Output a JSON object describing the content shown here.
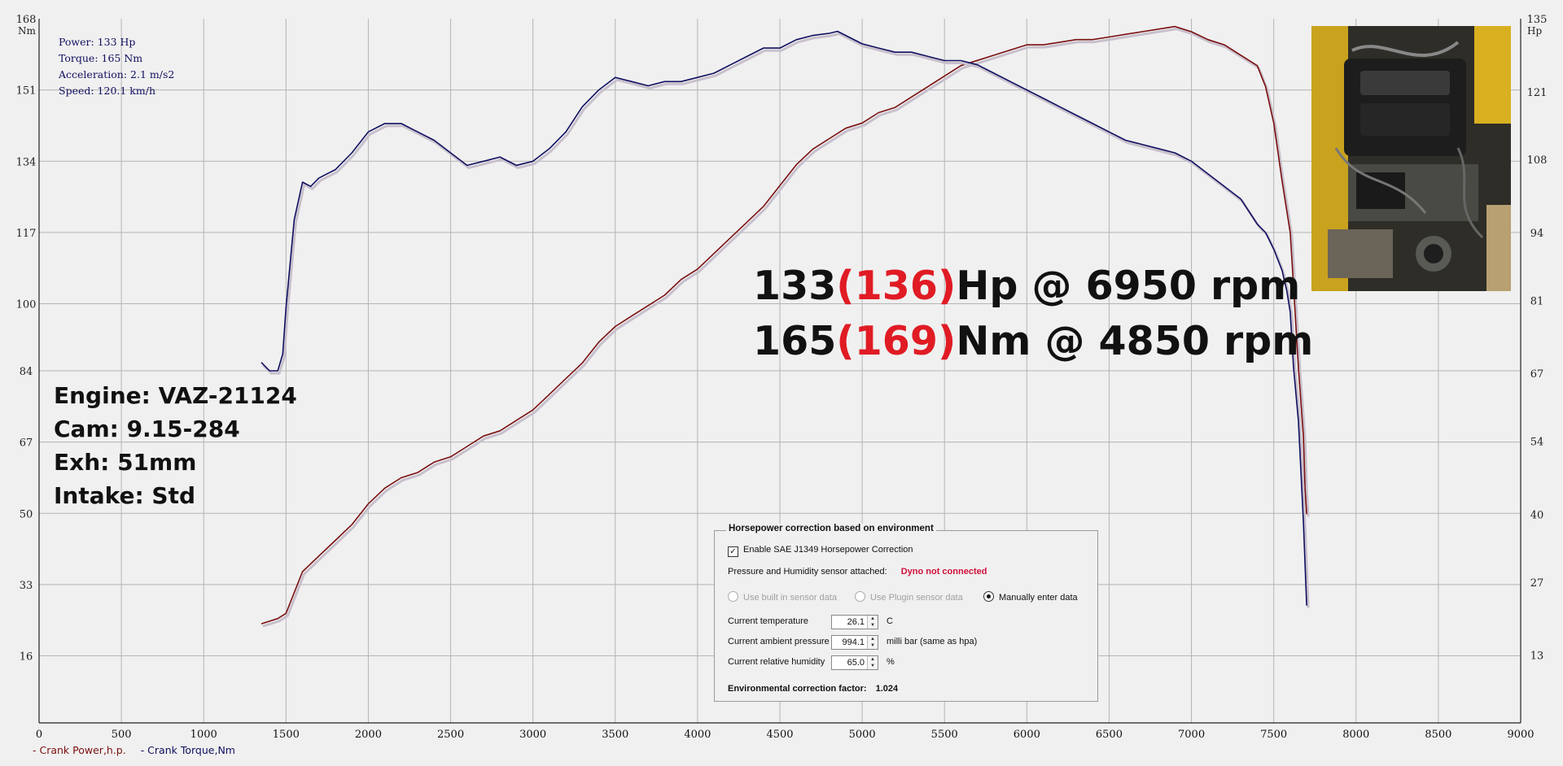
{
  "readout": {
    "power": "Power: 133 Hp",
    "torque": "Torque: 165 Nm",
    "acceleration": "Acceleration: 2.1 m/s2",
    "speed": "Speed: 120.1 km/h"
  },
  "specs": {
    "engine": "Engine: VAZ-21124",
    "cam": "Cam: 9.15-284",
    "exhaust": "Exh: 51mm",
    "intake": "Intake: Std"
  },
  "peaks": {
    "hp_value": "133",
    "hp_corrected": "(136)",
    "hp_rest": "Hp @ 6950 rpm",
    "nm_value": "165",
    "nm_corrected": "(169)",
    "nm_rest": "Nm @ 4850 rpm"
  },
  "legend": {
    "power": "- Crank Power,h.p.",
    "torque": "- Crank Torque,Nm"
  },
  "panel": {
    "title": "Horsepower correction based on environment",
    "enable_label": "Enable SAE J1349 Horsepower Correction",
    "enable_checked": "✓",
    "sensor_label": "Pressure and Humidity sensor attached:",
    "sensor_status": "Dyno not connected",
    "radio_builtin": "Use built in sensor data",
    "radio_plugin": "Use Plugin sensor data",
    "radio_manual": "Manually enter data",
    "temp_label": "Current temperature",
    "temp_value": "26.1",
    "temp_unit": "C",
    "pressure_label": "Current ambient pressure",
    "pressure_value": "994.1",
    "pressure_unit": "milli bar (same as hpa)",
    "humidity_label": "Current relative humidity",
    "humidity_value": "65.0",
    "humidity_unit": "%",
    "factor_label": "Environmental correction factor:",
    "factor_value": "1.024"
  },
  "colors": {
    "power": "#7a1010",
    "torque": "#101060",
    "grid": "#b4b4b4",
    "accent_red": "#e01b24"
  },
  "chart_data": {
    "type": "line",
    "title": "",
    "xlabel": "",
    "ylabel_left": "Nm",
    "ylabel_right": "Hp",
    "xlim": [
      0,
      9000
    ],
    "ylim_left": [
      0,
      168
    ],
    "ylim_right": [
      0,
      135
    ],
    "grid": true,
    "x_ticks": [
      "0",
      "500",
      "1000",
      "1500",
      "2000",
      "2500",
      "3000",
      "3500",
      "4000",
      "4500",
      "5000",
      "5500",
      "6000",
      "6500",
      "7000",
      "7500",
      "8000",
      "8500",
      "9000"
    ],
    "y_ticks_left": [
      "16",
      "33",
      "50",
      "67",
      "84",
      "100",
      "117",
      "134",
      "151",
      "168"
    ],
    "y_ticks_right": [
      "13",
      "27",
      "40",
      "54",
      "67",
      "81",
      "94",
      "108",
      "121",
      "135"
    ],
    "series": [
      {
        "name": "Crank Power,h.p.",
        "axis": "right",
        "x": [
          1350,
          1450,
          1500,
          1600,
          1700,
          1800,
          1900,
          2000,
          2100,
          2200,
          2300,
          2400,
          2500,
          2600,
          2700,
          2800,
          2900,
          3000,
          3100,
          3200,
          3300,
          3400,
          3500,
          3600,
          3700,
          3800,
          3900,
          4000,
          4100,
          4200,
          4300,
          4400,
          4500,
          4600,
          4700,
          4800,
          4900,
          5000,
          5100,
          5200,
          5300,
          5400,
          5500,
          5600,
          5700,
          5800,
          5900,
          6000,
          6100,
          6200,
          6300,
          6400,
          6500,
          6600,
          6700,
          6800,
          6900,
          6950,
          7000,
          7100,
          7200,
          7300,
          7400,
          7450,
          7500,
          7550,
          7600,
          7620,
          7650,
          7680,
          7690,
          7700
        ],
        "values": [
          19,
          20,
          21,
          29,
          32,
          35,
          38,
          42,
          45,
          47,
          48,
          50,
          51,
          53,
          55,
          56,
          58,
          60,
          63,
          66,
          69,
          73,
          76,
          78,
          80,
          82,
          85,
          87,
          90,
          93,
          96,
          99,
          103,
          107,
          110,
          112,
          114,
          115,
          117,
          118,
          120,
          122,
          124,
          126,
          127,
          128,
          129,
          130,
          130,
          130.5,
          131,
          131,
          131.5,
          132,
          132.5,
          133,
          133.5,
          133,
          132.5,
          131,
          130,
          128,
          126,
          122,
          115,
          104,
          94,
          84,
          68,
          55,
          45,
          40
        ]
      },
      {
        "name": "Crank Torque,Nm",
        "axis": "left",
        "x": [
          1350,
          1400,
          1450,
          1480,
          1500,
          1550,
          1600,
          1650,
          1700,
          1750,
          1800,
          1900,
          2000,
          2100,
          2200,
          2300,
          2400,
          2500,
          2600,
          2700,
          2800,
          2900,
          3000,
          3100,
          3200,
          3300,
          3400,
          3500,
          3600,
          3700,
          3800,
          3900,
          4000,
          4100,
          4200,
          4300,
          4400,
          4500,
          4600,
          4700,
          4800,
          4850,
          4900,
          5000,
          5100,
          5200,
          5300,
          5400,
          5500,
          5600,
          5700,
          5800,
          5900,
          6000,
          6100,
          6200,
          6300,
          6400,
          6500,
          6600,
          6700,
          6800,
          6900,
          7000,
          7100,
          7200,
          7300,
          7350,
          7400,
          7450,
          7500,
          7550,
          7580,
          7600,
          7620,
          7650,
          7680,
          7700
        ],
        "values": [
          86,
          84,
          84,
          88,
          99,
          120,
          129,
          128,
          130,
          131,
          132,
          136,
          141,
          143,
          143,
          141,
          139,
          136,
          133,
          134,
          135,
          133,
          134,
          137,
          141,
          147,
          151,
          154,
          153,
          152,
          153,
          153,
          154,
          155,
          157,
          159,
          161,
          161,
          163,
          164,
          164.5,
          165,
          164,
          162,
          161,
          160,
          160,
          159,
          158,
          158,
          157,
          155,
          153,
          151,
          149,
          147,
          145,
          143,
          141,
          139,
          138,
          137,
          136,
          134,
          131,
          128,
          125,
          122,
          119,
          117,
          113,
          108,
          103,
          98,
          85,
          72,
          48,
          28
        ]
      }
    ]
  }
}
